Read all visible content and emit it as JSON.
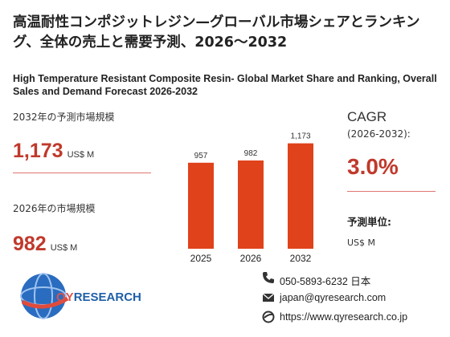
{
  "title_jp": "高温耐性コンポジットレジン—グローバル市場シェアとランキング、全体の売上と需要予測、2026～2032",
  "title_en": "High Temperature Resistant Composite Resin- Global Market Share and Ranking, Overall Sales and Demand Forecast 2026-2032",
  "left": {
    "label_2032": "2032年の予測市場規模",
    "value_2032": "1,173",
    "unit_2032": "US$ M",
    "label_2026": "2026年の市場規模",
    "value_2026": "982",
    "unit_2026": "US$ M"
  },
  "chart_data": {
    "type": "bar",
    "categories": [
      "2025",
      "2026",
      "2032"
    ],
    "values": [
      957,
      982,
      1173
    ],
    "value_labels": [
      "957",
      "982",
      "1,173"
    ],
    "title": "",
    "xlabel": "",
    "ylabel": "",
    "ylim": [
      0,
      1250
    ],
    "grid": false,
    "bar_color": "#e0421b"
  },
  "cagr": {
    "label": "CAGR",
    "period": "(2026-2032):",
    "value": "3.0%"
  },
  "forecast_unit": {
    "label": "予測単位:",
    "value": "US$ M"
  },
  "contact": {
    "phone": "050-5893-6232 日本",
    "email": "japan@qyresearch.com",
    "web": "https://www.qyresearch.co.jp"
  },
  "logo": {
    "text_q": "QY",
    "text_r": "RESEARCH"
  },
  "colors": {
    "accent": "#c0392b",
    "bar": "#e0421b",
    "logo_blue": "#1f5fa8"
  }
}
